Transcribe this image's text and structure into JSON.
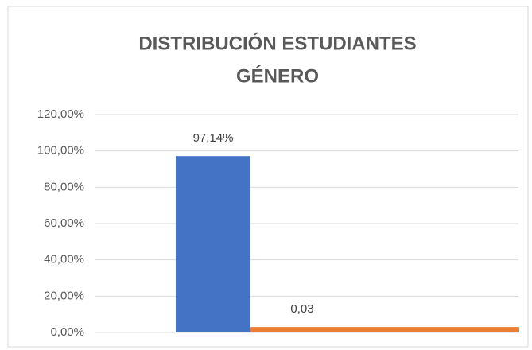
{
  "chart_data": {
    "type": "bar",
    "title": [
      "DISTRIBUCIÓN ESTUDIANTES",
      "GÉNERO"
    ],
    "categories": [
      null
    ],
    "series": [
      {
        "color": "#4472c4",
        "values": [
          97.14
        ],
        "value_labels": [
          "97,14%"
        ]
      },
      {
        "color": "#ed7d31",
        "values": [
          3
        ],
        "value_labels": [
          "0,03"
        ]
      }
    ],
    "ylim": [
      0,
      120
    ],
    "yticks": [
      {
        "value": 0,
        "label": "0,00%"
      },
      {
        "value": 20,
        "label": "20,00%"
      },
      {
        "value": 40,
        "label": "40,00%"
      },
      {
        "value": 60,
        "label": "60,00%"
      },
      {
        "value": 80,
        "label": "80,00%"
      },
      {
        "value": 100,
        "label": "100,00%"
      },
      {
        "value": 120,
        "label": "120,00%"
      }
    ],
    "grid": true
  }
}
